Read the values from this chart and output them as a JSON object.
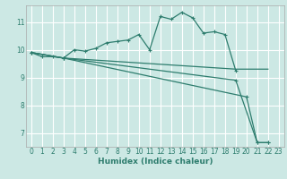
{
  "xlabel": "Humidex (Indice chaleur)",
  "bg_color": "#cce8e4",
  "grid_color": "#ffffff",
  "line_color": "#2e7d6e",
  "xlim": [
    -0.5,
    23.5
  ],
  "ylim": [
    6.5,
    11.6
  ],
  "yticks": [
    7,
    8,
    9,
    10,
    11
  ],
  "xticks": [
    0,
    1,
    2,
    3,
    4,
    5,
    6,
    7,
    8,
    9,
    10,
    11,
    12,
    13,
    14,
    15,
    16,
    17,
    18,
    19,
    20,
    21,
    22,
    23
  ],
  "series1_x": [
    0,
    1,
    2,
    3,
    4,
    5,
    6,
    7,
    8,
    9,
    10,
    11,
    12,
    13,
    14,
    15,
    16,
    17,
    18,
    19
  ],
  "series1_y": [
    9.9,
    9.75,
    9.75,
    9.7,
    10.0,
    9.95,
    10.05,
    10.25,
    10.3,
    10.35,
    10.55,
    10.0,
    11.2,
    11.1,
    11.35,
    11.15,
    10.6,
    10.65,
    10.55,
    9.25
  ],
  "series2_x": [
    0,
    3,
    19,
    22
  ],
  "series2_y": [
    9.9,
    9.7,
    9.3,
    9.3
  ],
  "series3_x": [
    0,
    3,
    20,
    21,
    22
  ],
  "series3_y": [
    9.9,
    9.7,
    8.3,
    6.65,
    6.65
  ],
  "series4_x": [
    0,
    3,
    19,
    21,
    22
  ],
  "series4_y": [
    9.9,
    9.7,
    8.9,
    6.65,
    6.65
  ],
  "xlabel_fontsize": 6.5,
  "tick_fontsize": 5.5,
  "linewidth": 0.9,
  "markersize": 3.5
}
